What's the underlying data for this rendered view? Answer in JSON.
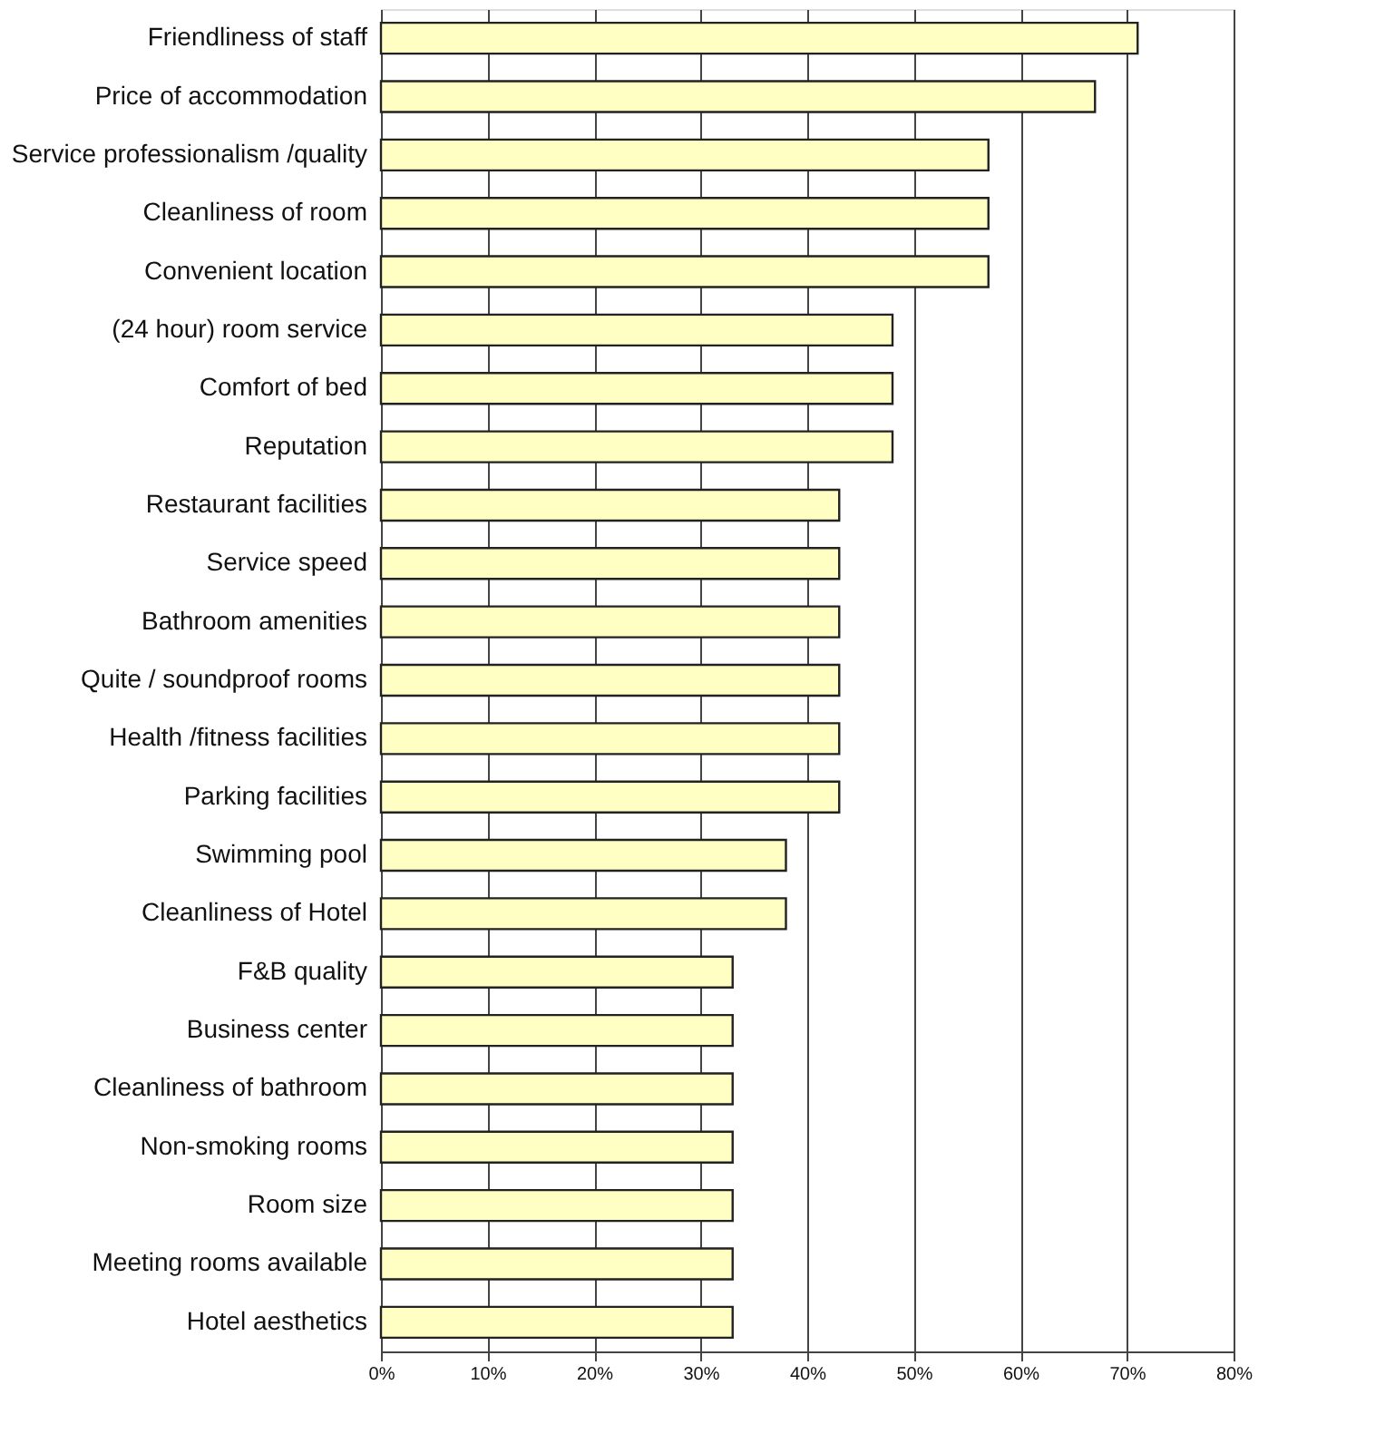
{
  "chart_data": {
    "type": "bar",
    "orientation": "horizontal",
    "categories": [
      "Friendliness of staff",
      "Price of accommodation",
      "Service professionalism /quality",
      "Cleanliness of room",
      "Convenient location",
      "(24 hour) room service",
      "Comfort of bed",
      "Reputation",
      "Restaurant facilities",
      "Service speed",
      "Bathroom amenities",
      "Quite / soundproof rooms",
      "Health /fitness facilities",
      "Parking facilities",
      "Swimming pool",
      "Cleanliness of Hotel",
      "F&B quality",
      "Business center",
      "Cleanliness of bathroom",
      "Non-smoking rooms ",
      "Room size",
      "Meeting rooms available",
      "Hotel aesthetics"
    ],
    "values": [
      71,
      67,
      57,
      57,
      57,
      48,
      48,
      48,
      43,
      43,
      43,
      43,
      43,
      43,
      38,
      38,
      33,
      33,
      33,
      33,
      33,
      33,
      33
    ],
    "color": "#ffffc4",
    "xlim": [
      0,
      80
    ],
    "xticks": [
      {
        "value": 0,
        "label": "0%"
      },
      {
        "value": 10,
        "label": "10%"
      },
      {
        "value": 20,
        "label": "20%"
      },
      {
        "value": 30,
        "label": "30%"
      },
      {
        "value": 40,
        "label": "40%"
      },
      {
        "value": 50,
        "label": "50%"
      },
      {
        "value": 60,
        "label": "60%"
      },
      {
        "value": 70,
        "label": "70%"
      },
      {
        "value": 80,
        "label": "80%"
      }
    ],
    "grid": "x"
  }
}
